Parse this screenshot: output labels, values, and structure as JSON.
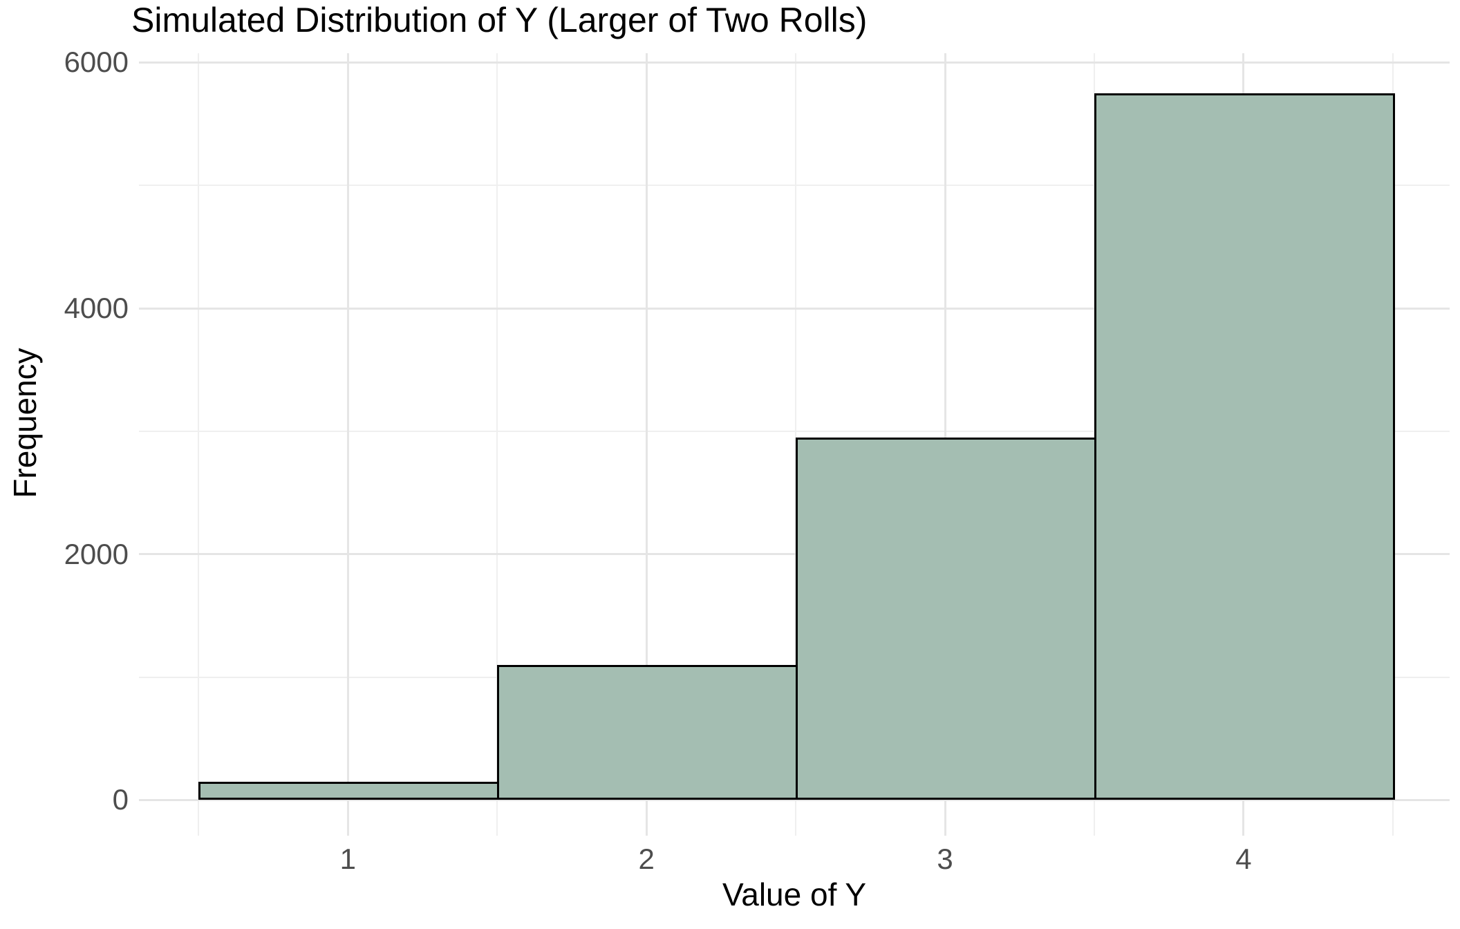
{
  "chart_data": {
    "type": "bar",
    "title": "Simulated Distribution of Y (Larger of Two Rolls)",
    "xlabel": "Value of Y",
    "ylabel": "Frequency",
    "categories": [
      1,
      2,
      3,
      4
    ],
    "values": [
      150,
      1100,
      2950,
      5750
    ],
    "bar_width": 1,
    "x_ticks": [
      1,
      2,
      3,
      4
    ],
    "x_minor_gridlines": [
      0.5,
      1.5,
      2.5,
      3.5,
      4.5
    ],
    "y_ticks": [
      0,
      2000,
      4000,
      6000
    ],
    "y_minor_gridlines": [
      1000,
      3000,
      5000
    ],
    "xlim": [
      0.3,
      4.69
    ],
    "ylim": [
      -290,
      6075
    ],
    "grid": "on",
    "legend": "none",
    "colors": {
      "bar_fill": "#A4BEB2",
      "bar_border": "#000000",
      "grid_major": "#E5E5E5",
      "grid_minor": "#EFEFEF",
      "tick_label_text": "#4D4D4D",
      "title_text": "#000000",
      "background": "#FFFFFF"
    }
  }
}
